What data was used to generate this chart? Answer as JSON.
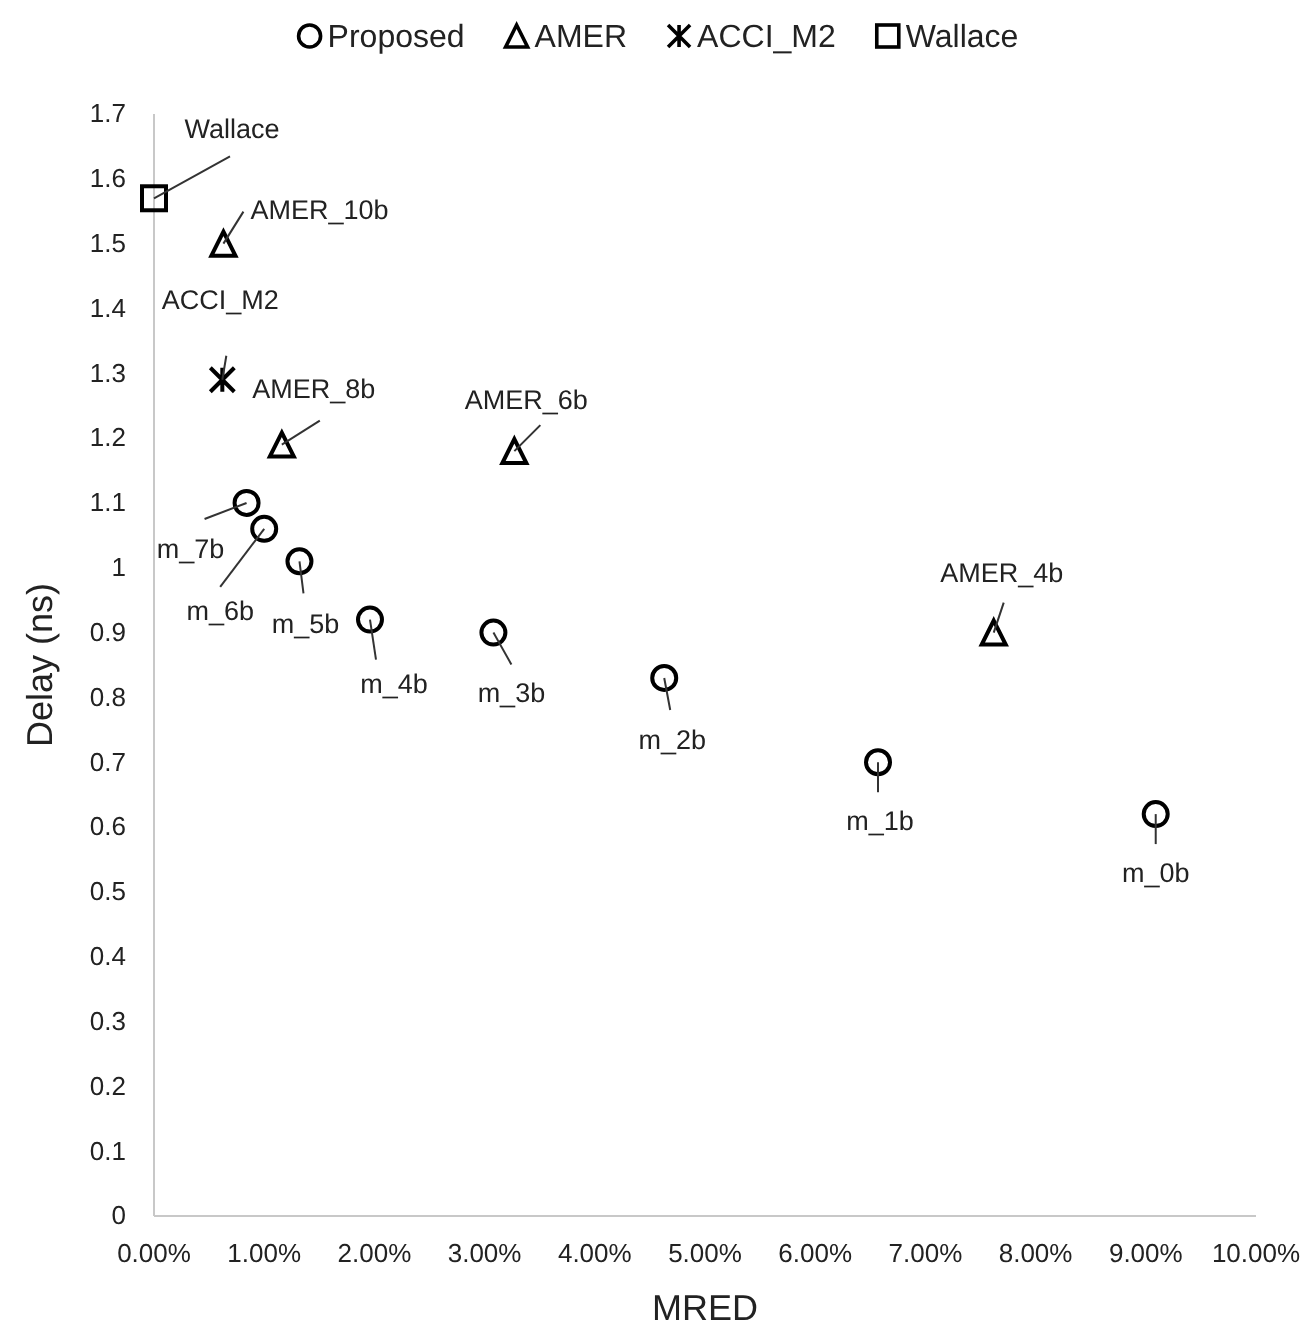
{
  "chart_data": {
    "type": "scatter",
    "xlabel": "MRED",
    "ylabel": "Delay (ns)",
    "xlim": [
      0,
      10
    ],
    "xticks": [
      {
        "value": 0,
        "label": "0.00%"
      },
      {
        "value": 1,
        "label": "1.00%"
      },
      {
        "value": 2,
        "label": "2.00%"
      },
      {
        "value": 3,
        "label": "3.00%"
      },
      {
        "value": 4,
        "label": "4.00%"
      },
      {
        "value": 5,
        "label": "5.00%"
      },
      {
        "value": 6,
        "label": "6.00%"
      },
      {
        "value": 7,
        "label": "7.00%"
      },
      {
        "value": 8,
        "label": "8.00%"
      },
      {
        "value": 9,
        "label": "9.00%"
      },
      {
        "value": 10,
        "label": "10.00%"
      }
    ],
    "ylim": [
      0,
      1.7
    ],
    "yticks": [
      0,
      0.1,
      0.2,
      0.3,
      0.4,
      0.5,
      0.6,
      0.7,
      0.8,
      0.9,
      1,
      1.1,
      1.2,
      1.3,
      1.4,
      1.5,
      1.6,
      1.7
    ],
    "grid": false,
    "legend": "top",
    "series": [
      {
        "name": "Proposed",
        "color": "#000000",
        "marker": "circle",
        "x": [
          0.84,
          1.0,
          1.32,
          1.96,
          3.08,
          4.63,
          6.57,
          9.09
        ],
        "values": [
          1.1,
          1.06,
          1.01,
          0.92,
          0.9,
          0.83,
          0.7,
          0.62
        ]
      },
      {
        "name": "AMER",
        "color": "#000000",
        "marker": "triangle",
        "x": [
          0.63,
          1.16,
          3.27,
          7.62
        ],
        "values": [
          1.5,
          1.19,
          1.18,
          0.9
        ]
      },
      {
        "name": "ACCI_M2",
        "color": "#000000",
        "marker": "cross",
        "x": [
          0.62
        ],
        "values": [
          1.29
        ]
      },
      {
        "name": "Wallace",
        "color": "#000000",
        "marker": "square",
        "x": [
          0
        ],
        "values": [
          1.57
        ]
      }
    ],
    "annotations": [
      {
        "text": "Wallace",
        "x": 0,
        "y": 1.57
      },
      {
        "text": "AMER_10b",
        "x": 0.63,
        "y": 1.5
      },
      {
        "text": "ACCI_M2",
        "x": 0.62,
        "y": 1.29
      },
      {
        "text": "AMER_8b",
        "x": 1.16,
        "y": 1.19
      },
      {
        "text": "AMER_6b",
        "x": 3.27,
        "y": 1.18
      },
      {
        "text": "m_7b",
        "x": 0.84,
        "y": 1.1
      },
      {
        "text": "m_6b",
        "x": 1.0,
        "y": 1.06
      },
      {
        "text": "m_5b",
        "x": 1.32,
        "y": 1.01
      },
      {
        "text": "m_4b",
        "x": 1.96,
        "y": 0.92
      },
      {
        "text": "m_3b",
        "x": 3.08,
        "y": 0.9
      },
      {
        "text": "m_2b",
        "x": 4.63,
        "y": 0.83
      },
      {
        "text": "m_1b",
        "x": 6.57,
        "y": 0.7
      },
      {
        "text": "m_0b",
        "x": 9.09,
        "y": 0.62
      },
      {
        "text": "AMER_4b",
        "x": 7.62,
        "y": 0.9
      }
    ]
  }
}
